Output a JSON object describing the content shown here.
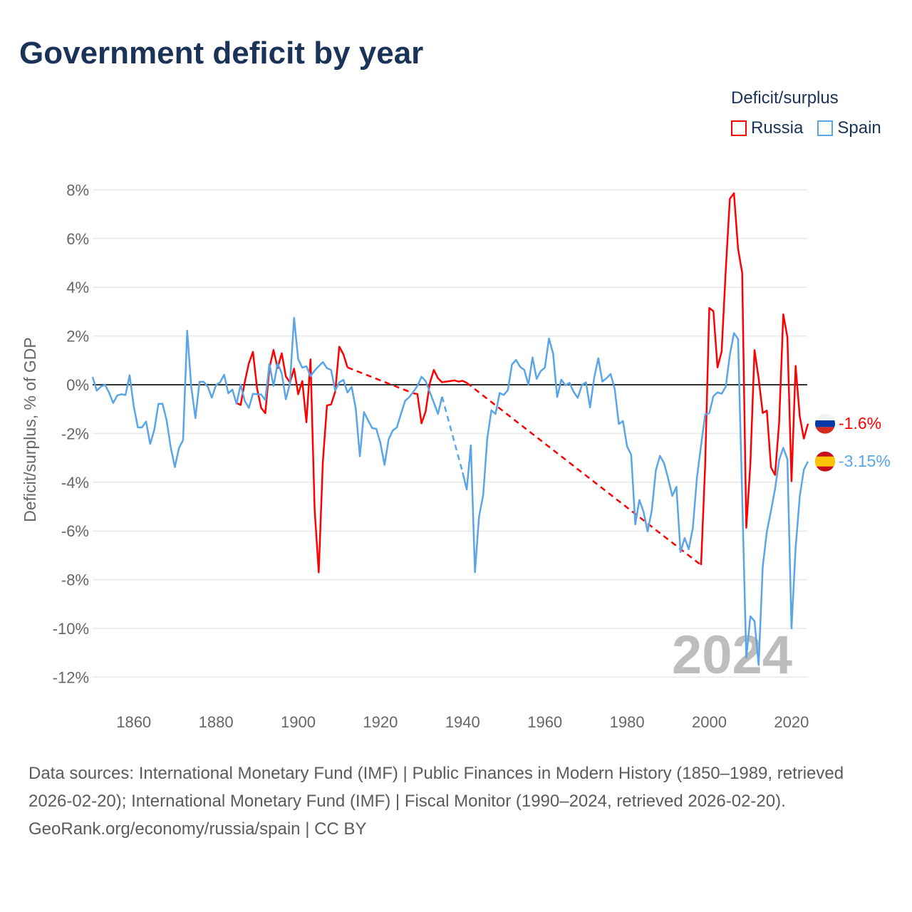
{
  "title": "Government deficit by year",
  "legend": {
    "title": "Deficit/surplus",
    "items": [
      {
        "label": "Russia",
        "color": "#ff0000"
      },
      {
        "label": "Spain",
        "color": "#5aa5e8"
      }
    ]
  },
  "footer": {
    "sources": "Data sources: International Monetary Fund (IMF) | Public Finances in Modern History (1850–1989, retrieved 2026-02-20); International Monetary Fund (IMF) | Fiscal Monitor (1990–2024, retrieved 2026-02-20).",
    "credit": "GeoRank.org/economy/russia/spain | CC BY"
  },
  "chart_data": {
    "type": "line",
    "title": "Government deficit by year",
    "xlabel": "",
    "ylabel": "Deficit/surplus, % of GDP",
    "xlim": [
      1850,
      2024
    ],
    "ylim": [
      -13,
      8.5
    ],
    "x_ticks": [
      1860,
      1880,
      1900,
      1920,
      1940,
      1960,
      1980,
      2000,
      2020
    ],
    "x_tick_labels": [
      "1860",
      "1880",
      "1900",
      "1920",
      "1940",
      "1960",
      "1980",
      "2000",
      "2020"
    ],
    "y_ticks": [
      8,
      6,
      4,
      2,
      0,
      -2,
      -4,
      -6,
      -8,
      -10,
      -12
    ],
    "y_tick_labels": [
      "8%",
      "6%",
      "4%",
      "2%",
      "0%",
      "-2%",
      "-4%",
      "-6%",
      "-8%",
      "-10%",
      "-12%"
    ],
    "grid": true,
    "legend_position": "top-right",
    "year_label": "2024",
    "series": [
      {
        "name": "Russia",
        "color": "#ff0000",
        "end_label": "-1.6%",
        "points": [
          [
            1885,
            -0.75
          ],
          [
            1886,
            -0.83
          ],
          [
            1887,
            0.1
          ],
          [
            1888,
            0.88
          ],
          [
            1889,
            1.35
          ],
          [
            1890,
            -0.15
          ],
          [
            1891,
            -0.95
          ],
          [
            1892,
            -1.17
          ],
          [
            1893,
            0.68
          ],
          [
            1894,
            1.43
          ],
          [
            1895,
            0.68
          ],
          [
            1896,
            1.29
          ],
          [
            1897,
            0.34
          ],
          [
            1898,
            0.1
          ],
          [
            1899,
            0.66
          ],
          [
            1900,
            -0.39
          ],
          [
            1901,
            0.15
          ],
          [
            1902,
            -1.54
          ],
          [
            1903,
            1.04
          ],
          [
            1904,
            -5.12
          ],
          [
            1905,
            -7.7
          ],
          [
            1906,
            -3.17
          ],
          [
            1907,
            -0.85
          ],
          [
            1908,
            -0.81
          ],
          [
            1909,
            -0.29
          ],
          [
            1910,
            1.56
          ],
          [
            1911,
            1.25
          ],
          [
            1912,
            0.71
          ],
          [
            1928,
            -0.35
          ],
          [
            1929,
            -0.38
          ],
          [
            1930,
            -1.58
          ],
          [
            1931,
            -1.1
          ],
          [
            1932,
            0.05
          ],
          [
            1933,
            0.61
          ],
          [
            1934,
            0.27
          ],
          [
            1935,
            0.1
          ],
          [
            1936,
            0.13
          ],
          [
            1937,
            0.15
          ],
          [
            1938,
            0.18
          ],
          [
            1939,
            0.13
          ],
          [
            1940,
            0.16
          ],
          [
            1941,
            0.08
          ],
          [
            1998,
            -7.4
          ],
          [
            1999,
            -3.28
          ],
          [
            2000,
            3.15
          ],
          [
            2001,
            3.02
          ],
          [
            2002,
            0.71
          ],
          [
            2003,
            1.36
          ],
          [
            2004,
            4.69
          ],
          [
            2005,
            7.63
          ],
          [
            2006,
            7.86
          ],
          [
            2007,
            5.58
          ],
          [
            2008,
            4.59
          ],
          [
            2009,
            -5.87
          ],
          [
            2010,
            -3.22
          ],
          [
            2011,
            1.42
          ],
          [
            2012,
            0.27
          ],
          [
            2013,
            -1.16
          ],
          [
            2014,
            -1.06
          ],
          [
            2015,
            -3.39
          ],
          [
            2016,
            -3.7
          ],
          [
            2017,
            -1.52
          ],
          [
            2018,
            2.89
          ],
          [
            2019,
            1.95
          ],
          [
            2020,
            -3.96
          ],
          [
            2021,
            0.77
          ],
          [
            2022,
            -1.29
          ],
          [
            2023,
            -2.21
          ],
          [
            2024,
            -1.6
          ]
        ]
      },
      {
        "name": "Spain",
        "color": "#5aa5e8",
        "end_label": "-3.15%",
        "points": [
          [
            1850,
            0.32
          ],
          [
            1851,
            -0.24
          ],
          [
            1852,
            -0.08
          ],
          [
            1853,
            0
          ],
          [
            1854,
            -0.32
          ],
          [
            1855,
            -0.75
          ],
          [
            1856,
            -0.44
          ],
          [
            1857,
            -0.39
          ],
          [
            1858,
            -0.42
          ],
          [
            1859,
            0.39
          ],
          [
            1860,
            -0.88
          ],
          [
            1861,
            -1.75
          ],
          [
            1862,
            -1.75
          ],
          [
            1863,
            -1.51
          ],
          [
            1864,
            -2.43
          ],
          [
            1865,
            -1.85
          ],
          [
            1866,
            -0.79
          ],
          [
            1867,
            -0.78
          ],
          [
            1868,
            -1.46
          ],
          [
            1869,
            -2.57
          ],
          [
            1870,
            -3.38
          ],
          [
            1871,
            -2.6
          ],
          [
            1872,
            -2.27
          ],
          [
            1873,
            2.22
          ],
          [
            1874,
            -0.1
          ],
          [
            1875,
            -1.37
          ],
          [
            1876,
            0.12
          ],
          [
            1877,
            0.12
          ],
          [
            1878,
            -0.08
          ],
          [
            1879,
            -0.53
          ],
          [
            1880,
            -0.02
          ],
          [
            1881,
            0.1
          ],
          [
            1882,
            0.41
          ],
          [
            1883,
            -0.35
          ],
          [
            1884,
            -0.2
          ],
          [
            1885,
            -0.78
          ],
          [
            1886,
            0
          ],
          [
            1887,
            -0.66
          ],
          [
            1888,
            -0.95
          ],
          [
            1889,
            -0.37
          ],
          [
            1890,
            -0.39
          ],
          [
            1891,
            -0.4
          ],
          [
            1892,
            -0.63
          ],
          [
            1893,
            0.86
          ],
          [
            1894,
            -0.05
          ],
          [
            1895,
            0.88
          ],
          [
            1896,
            0.47
          ],
          [
            1897,
            -0.6
          ],
          [
            1898,
            0.05
          ],
          [
            1899,
            2.75
          ],
          [
            1900,
            1.05
          ],
          [
            1901,
            0.7
          ],
          [
            1902,
            0.76
          ],
          [
            1903,
            0.35
          ],
          [
            1904,
            0.58
          ],
          [
            1905,
            0.76
          ],
          [
            1906,
            0.93
          ],
          [
            1907,
            0.68
          ],
          [
            1908,
            0.61
          ],
          [
            1909,
            -0.24
          ],
          [
            1910,
            0.1
          ],
          [
            1911,
            0.2
          ],
          [
            1912,
            -0.32
          ],
          [
            1913,
            -0.08
          ],
          [
            1914,
            -0.97
          ],
          [
            1915,
            -2.94
          ],
          [
            1916,
            -1.12
          ],
          [
            1917,
            -1.46
          ],
          [
            1918,
            -1.78
          ],
          [
            1919,
            -1.81
          ],
          [
            1920,
            -2.39
          ],
          [
            1921,
            -3.29
          ],
          [
            1922,
            -2.24
          ],
          [
            1923,
            -1.88
          ],
          [
            1924,
            -1.75
          ],
          [
            1925,
            -1.2
          ],
          [
            1926,
            -0.66
          ],
          [
            1927,
            -0.51
          ],
          [
            1928,
            -0.29
          ],
          [
            1929,
            -0.05
          ],
          [
            1930,
            0.33
          ],
          [
            1931,
            0.15
          ],
          [
            1932,
            -0.29
          ],
          [
            1933,
            -0.73
          ],
          [
            1934,
            -1.2
          ],
          [
            1935,
            -0.49
          ],
          [
            1940,
            -3.6
          ],
          [
            1941,
            -4.3
          ],
          [
            1942,
            -2.49
          ],
          [
            1943,
            -7.7
          ],
          [
            1944,
            -5.4
          ],
          [
            1945,
            -4.53
          ],
          [
            1946,
            -2.19
          ],
          [
            1947,
            -1.05
          ],
          [
            1948,
            -1.2
          ],
          [
            1949,
            -0.34
          ],
          [
            1950,
            -0.42
          ],
          [
            1951,
            -0.22
          ],
          [
            1952,
            0.83
          ],
          [
            1953,
            1.02
          ],
          [
            1954,
            0.73
          ],
          [
            1955,
            0.61
          ],
          [
            1956,
            0
          ],
          [
            1957,
            1.12
          ],
          [
            1958,
            0.24
          ],
          [
            1959,
            0.56
          ],
          [
            1960,
            0.7
          ],
          [
            1961,
            1.9
          ],
          [
            1962,
            1.29
          ],
          [
            1963,
            -0.51
          ],
          [
            1964,
            0.21
          ],
          [
            1965,
            -0.02
          ],
          [
            1966,
            0.08
          ],
          [
            1967,
            -0.29
          ],
          [
            1968,
            -0.54
          ],
          [
            1969,
            -0.02
          ],
          [
            1970,
            0.1
          ],
          [
            1971,
            -0.93
          ],
          [
            1972,
            0.29
          ],
          [
            1973,
            1.09
          ],
          [
            1974,
            0.13
          ],
          [
            1975,
            0.27
          ],
          [
            1976,
            0.44
          ],
          [
            1977,
            -0.18
          ],
          [
            1978,
            -1.61
          ],
          [
            1979,
            -1.49
          ],
          [
            1980,
            -2.53
          ],
          [
            1981,
            -2.87
          ],
          [
            1982,
            -5.73
          ],
          [
            1983,
            -4.73
          ],
          [
            1984,
            -5.21
          ],
          [
            1985,
            -6.02
          ],
          [
            1986,
            -5.17
          ],
          [
            1987,
            -3.51
          ],
          [
            1988,
            -2.92
          ],
          [
            1989,
            -3.22
          ],
          [
            1990,
            -3.85
          ],
          [
            1991,
            -4.56
          ],
          [
            1992,
            -4.19
          ],
          [
            1993,
            -6.87
          ],
          [
            1994,
            -6.29
          ],
          [
            1995,
            -6.75
          ],
          [
            1996,
            -5.87
          ],
          [
            1997,
            -3.8
          ],
          [
            1998,
            -2.49
          ],
          [
            1999,
            -1.22
          ],
          [
            2000,
            -1.17
          ],
          [
            2001,
            -0.47
          ],
          [
            2002,
            -0.31
          ],
          [
            2003,
            -0.37
          ],
          [
            2004,
            -0.08
          ],
          [
            2005,
            1.23
          ],
          [
            2006,
            2.12
          ],
          [
            2007,
            1.88
          ],
          [
            2008,
            -4.59
          ],
          [
            2009,
            -11.2
          ],
          [
            2010,
            -9.5
          ],
          [
            2011,
            -9.7
          ],
          [
            2012,
            -11.5
          ],
          [
            2013,
            -7.46
          ],
          [
            2014,
            -6.03
          ],
          [
            2015,
            -5.18
          ],
          [
            2016,
            -4.27
          ],
          [
            2017,
            -3.08
          ],
          [
            2018,
            -2.59
          ],
          [
            2019,
            -3.05
          ],
          [
            2020,
            -10.0
          ],
          [
            2021,
            -6.69
          ],
          [
            2022,
            -4.59
          ],
          [
            2023,
            -3.48
          ],
          [
            2024,
            -3.15
          ]
        ]
      }
    ]
  }
}
